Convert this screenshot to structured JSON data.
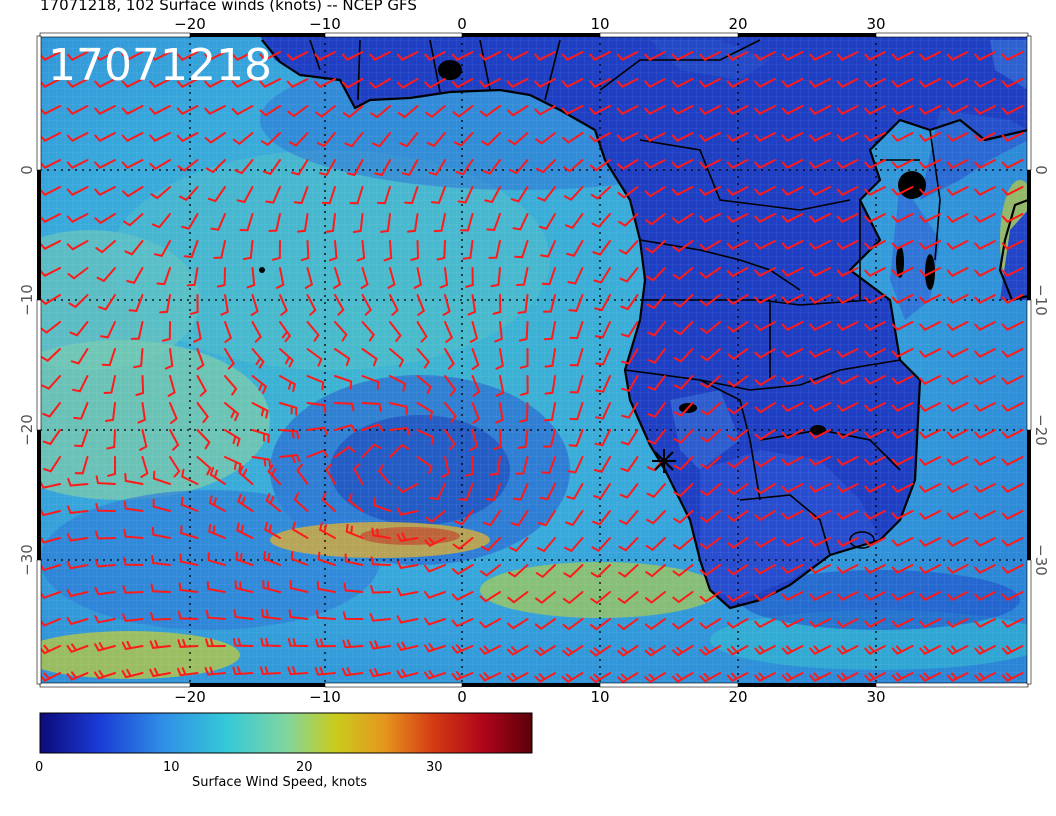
{
  "header": {
    "title": "17071218, 102 Surface winds (knots) -- NCEP GFS",
    "timestamp": "17071218"
  },
  "map": {
    "lon_ticks": [
      "−20",
      "−10",
      "0",
      "10",
      "20",
      "30"
    ],
    "lon_top_ticks": [
      "−20",
      "−10",
      "0",
      "10",
      "20",
      "30"
    ],
    "lat_ticks": [
      "0",
      "−10",
      "−20",
      "−30"
    ],
    "colors": {
      "ocean_mid": "#35b4d8",
      "land": "#1f3fc4",
      "barb": "#ff1a1a",
      "coast": "#000000"
    }
  },
  "colorbar": {
    "ticks": [
      "0",
      "10",
      "20",
      "30"
    ],
    "label": "Surface Wind Speed, knots",
    "stops": [
      "#0d0a7a",
      "#1a3bd6",
      "#2f8ee6",
      "#35c9d8",
      "#7fd6a0",
      "#c9cc1e",
      "#e6961e",
      "#d43a14",
      "#b0061a",
      "#5a0008"
    ]
  }
}
